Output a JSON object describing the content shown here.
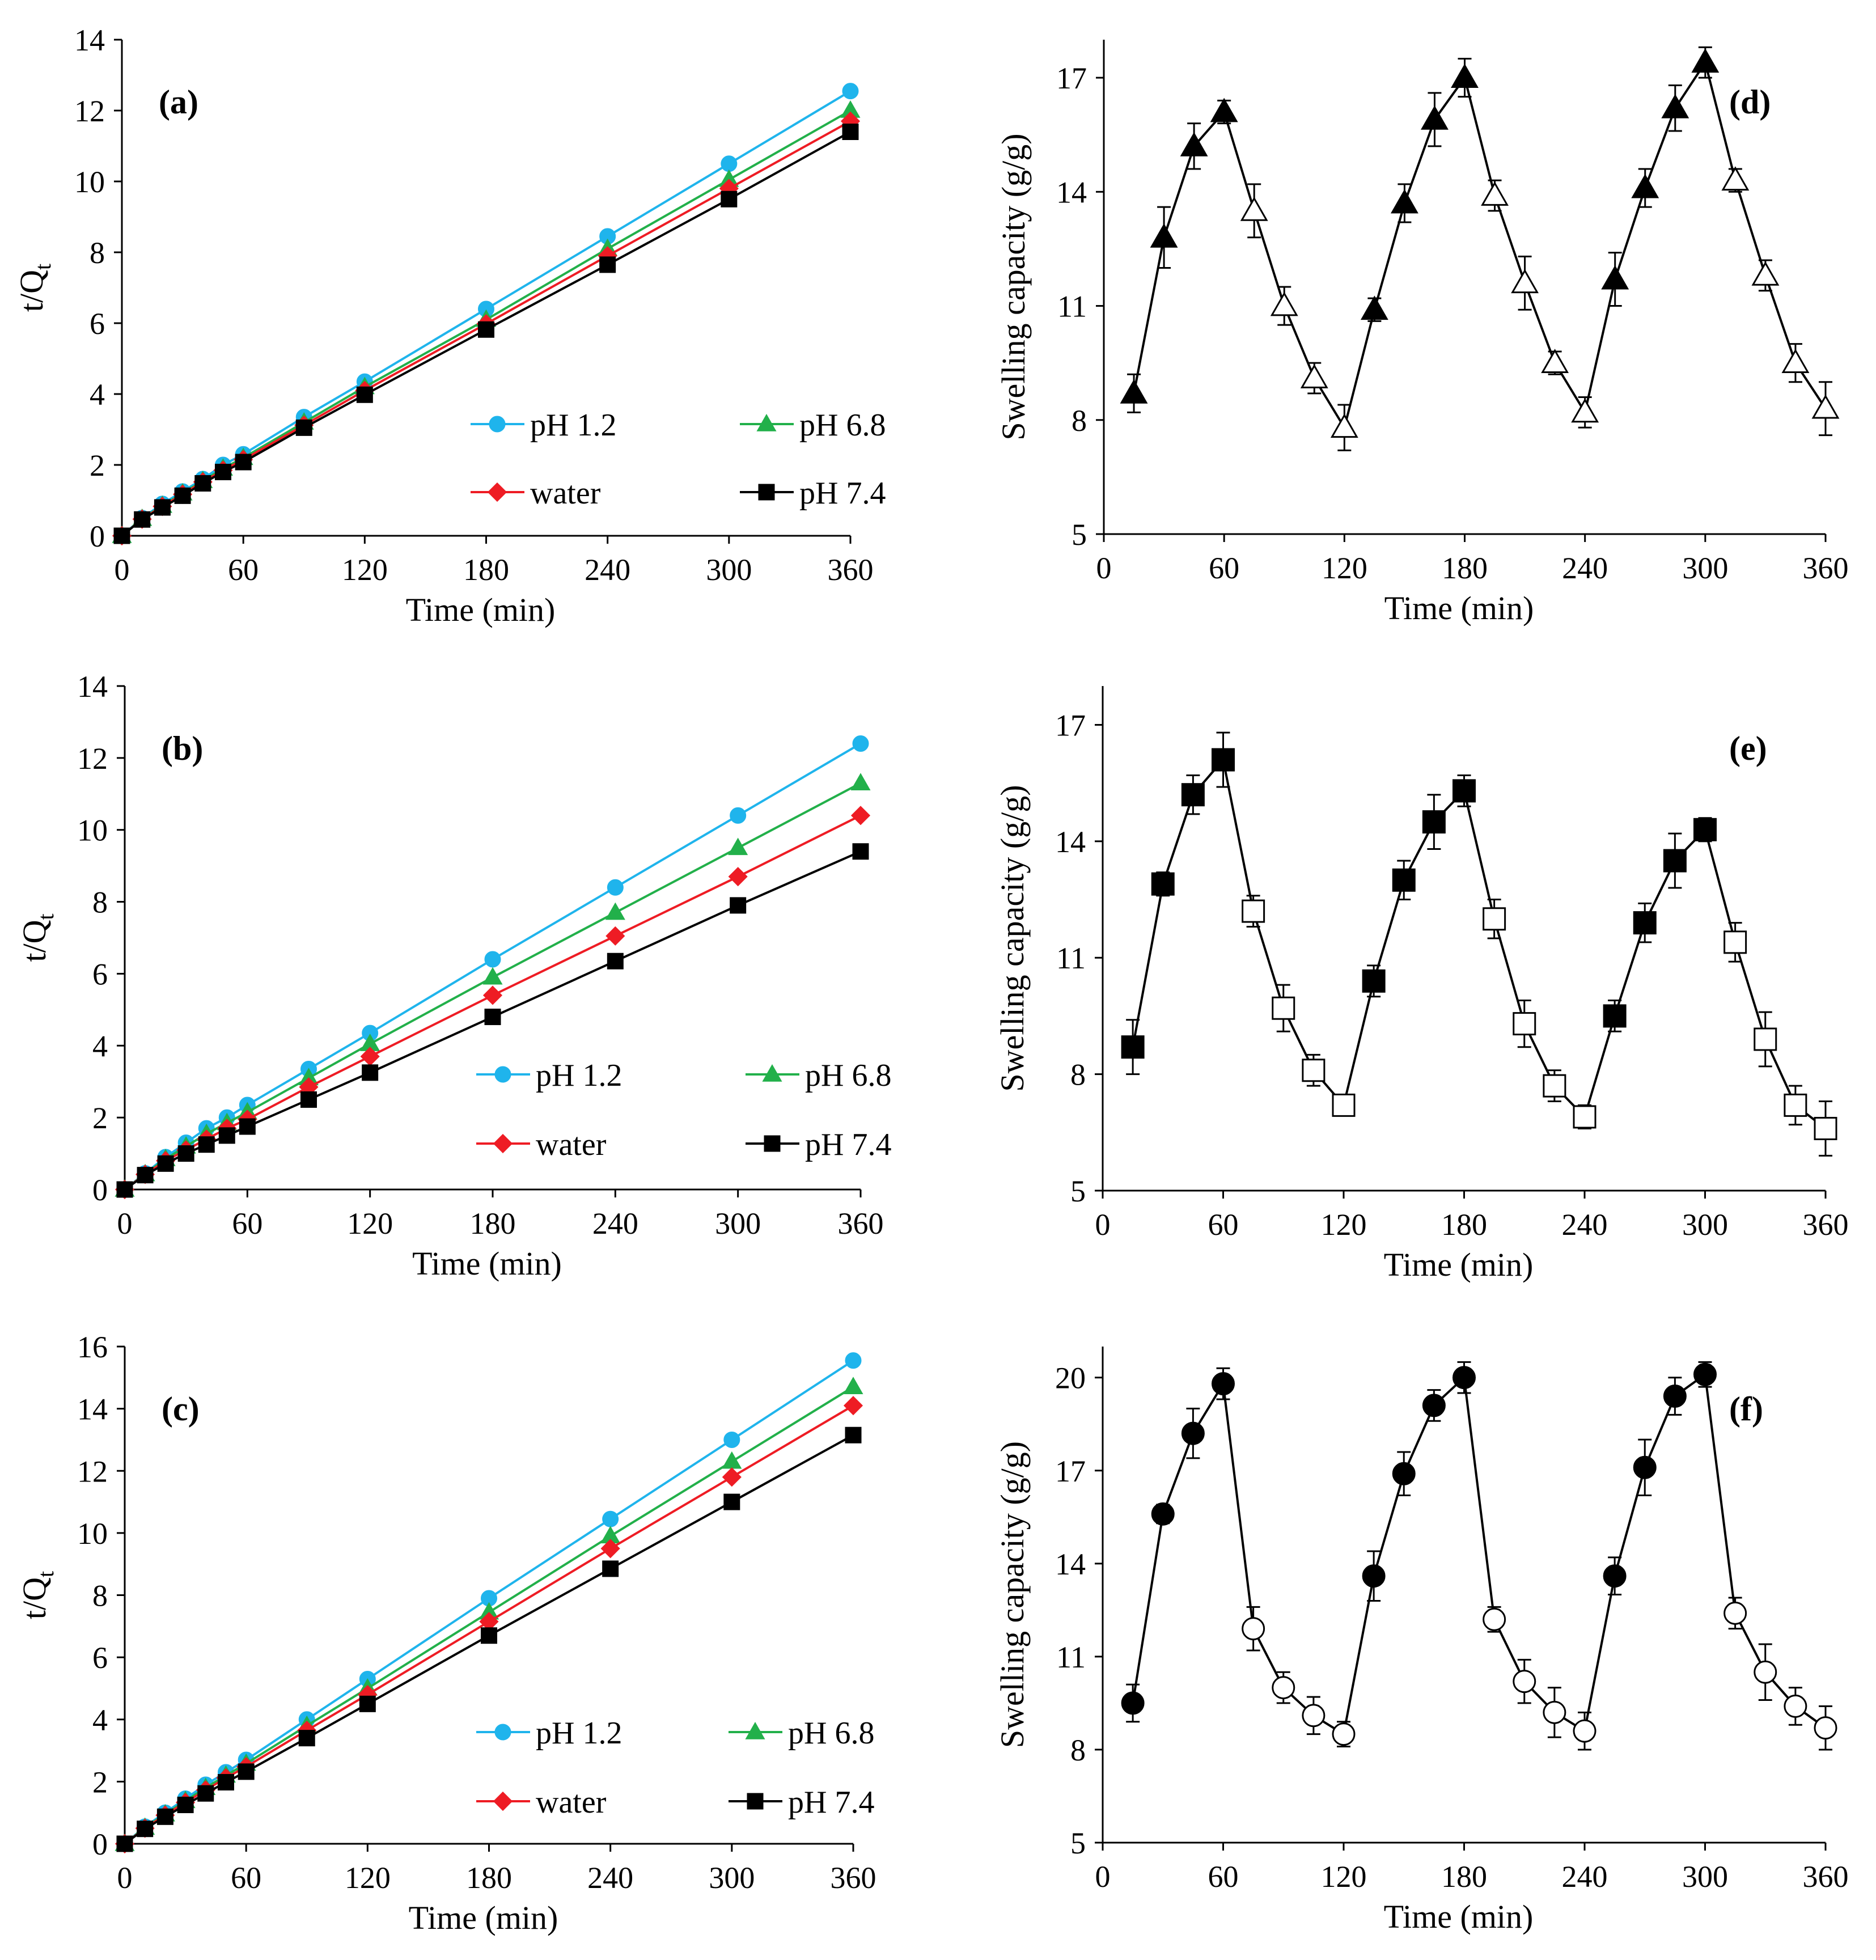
{
  "chart_data": [
    {
      "id": "a",
      "type": "line",
      "panel_label": "(a)",
      "title": "",
      "xlabel": "Time (min)",
      "ylabel": "t/Q",
      "ylabel_sub": "t",
      "xlim": [
        0,
        360
      ],
      "ylim": [
        0,
        14
      ],
      "xticks": [
        "0",
        "60",
        "120",
        "180",
        "240",
        "300",
        "360"
      ],
      "yticks": [
        "0",
        "2",
        "4",
        "6",
        "8",
        "10",
        "12",
        "14"
      ],
      "legend_position": "bottom-right",
      "x": [
        0,
        10,
        20,
        30,
        40,
        50,
        60,
        90,
        120,
        180,
        240,
        300,
        360
      ],
      "series": [
        {
          "name": "pH 1.2",
          "color": "#1fb4ec",
          "marker": "circle",
          "values": [
            0,
            0.5,
            0.9,
            1.25,
            1.6,
            2.0,
            2.3,
            3.35,
            4.35,
            6.4,
            8.45,
            10.5,
            12.55
          ]
        },
        {
          "name": "pH 6.8",
          "color": "#22b04a",
          "marker": "triangle",
          "values": [
            0,
            0.48,
            0.85,
            1.2,
            1.55,
            1.9,
            2.2,
            3.2,
            4.2,
            6.1,
            8.1,
            10.05,
            12.0
          ]
        },
        {
          "name": "water",
          "color": "#ee1c24",
          "marker": "diamond",
          "values": [
            0,
            0.47,
            0.83,
            1.17,
            1.52,
            1.85,
            2.15,
            3.12,
            4.1,
            5.98,
            7.9,
            9.8,
            11.7
          ]
        },
        {
          "name": "pH 7.4",
          "color": "#000000",
          "marker": "square",
          "values": [
            0,
            0.46,
            0.8,
            1.13,
            1.48,
            1.8,
            2.08,
            3.05,
            3.98,
            5.82,
            7.65,
            9.5,
            11.4
          ]
        }
      ]
    },
    {
      "id": "b",
      "type": "line",
      "panel_label": "(b)",
      "title": "",
      "xlabel": "Time (min)",
      "ylabel": "t/Q",
      "ylabel_sub": "t",
      "xlim": [
        0,
        360
      ],
      "ylim": [
        0,
        14
      ],
      "xticks": [
        "0",
        "60",
        "120",
        "180",
        "240",
        "300",
        "360"
      ],
      "yticks": [
        "0",
        "2",
        "4",
        "6",
        "8",
        "10",
        "12",
        "14"
      ],
      "legend_position": "bottom-right",
      "x": [
        0,
        10,
        20,
        30,
        40,
        50,
        60,
        90,
        120,
        180,
        240,
        300,
        360
      ],
      "series": [
        {
          "name": "pH 1.2",
          "color": "#1fb4ec",
          "marker": "circle",
          "values": [
            0,
            0.45,
            0.9,
            1.3,
            1.7,
            2.0,
            2.35,
            3.35,
            4.35,
            6.4,
            8.4,
            10.4,
            12.4
          ]
        },
        {
          "name": "pH 6.8",
          "color": "#22b04a",
          "marker": "triangle",
          "values": [
            0,
            0.43,
            0.85,
            1.2,
            1.55,
            1.85,
            2.15,
            3.1,
            4.05,
            5.9,
            7.7,
            9.5,
            11.3
          ]
        },
        {
          "name": "water",
          "color": "#ee1c24",
          "marker": "diamond",
          "values": [
            0,
            0.42,
            0.8,
            1.1,
            1.4,
            1.7,
            1.95,
            2.85,
            3.7,
            5.4,
            7.05,
            8.7,
            10.4
          ]
        },
        {
          "name": "pH 7.4",
          "color": "#000000",
          "marker": "square",
          "values": [
            0,
            0.4,
            0.72,
            1.0,
            1.25,
            1.5,
            1.75,
            2.5,
            3.25,
            4.8,
            6.35,
            7.9,
            9.4
          ]
        }
      ]
    },
    {
      "id": "c",
      "type": "line",
      "panel_label": "(c)",
      "title": "",
      "xlabel": "Time (min)",
      "ylabel": "t/Q",
      "ylabel_sub": "t",
      "xlim": [
        0,
        360
      ],
      "ylim": [
        0,
        16
      ],
      "xticks": [
        "0",
        "60",
        "120",
        "180",
        "240",
        "300",
        "360"
      ],
      "yticks": [
        "0",
        "2",
        "4",
        "6",
        "8",
        "10",
        "12",
        "14",
        "16"
      ],
      "legend_position": "bottom-right",
      "x": [
        0,
        10,
        20,
        30,
        40,
        50,
        60,
        90,
        120,
        180,
        240,
        300,
        360
      ],
      "series": [
        {
          "name": "pH 1.2",
          "color": "#1fb4ec",
          "marker": "circle",
          "values": [
            0,
            0.55,
            1.0,
            1.45,
            1.9,
            2.3,
            2.7,
            4.0,
            5.3,
            7.9,
            10.45,
            13.0,
            15.55
          ]
        },
        {
          "name": "pH 6.8",
          "color": "#22b04a",
          "marker": "triangle",
          "values": [
            0,
            0.52,
            0.95,
            1.38,
            1.8,
            2.2,
            2.58,
            3.8,
            5.0,
            7.45,
            9.9,
            12.3,
            14.7
          ]
        },
        {
          "name": "water",
          "color": "#ee1c24",
          "marker": "diamond",
          "values": [
            0,
            0.5,
            0.92,
            1.33,
            1.73,
            2.12,
            2.48,
            3.65,
            4.8,
            7.15,
            9.5,
            11.8,
            14.1
          ]
        },
        {
          "name": "pH 7.4",
          "color": "#000000",
          "marker": "square",
          "values": [
            0,
            0.48,
            0.87,
            1.25,
            1.62,
            1.98,
            2.32,
            3.4,
            4.5,
            6.7,
            8.85,
            11.0,
            13.15
          ]
        }
      ]
    },
    {
      "id": "d",
      "type": "line",
      "panel_label": "(d)",
      "title": "",
      "xlabel": "Time (min)",
      "ylabel": "Swelling capacity (g/g)",
      "xlim": [
        0,
        360
      ],
      "ylim": [
        5,
        18
      ],
      "xticks": [
        "0",
        "60",
        "120",
        "180",
        "240",
        "300",
        "360"
      ],
      "yticks": [
        "5",
        "8",
        "11",
        "14",
        "17"
      ],
      "marker": "triangle",
      "x": [
        15,
        30,
        45,
        60,
        75,
        90,
        105,
        120,
        135,
        150,
        165,
        180,
        195,
        210,
        225,
        240,
        255,
        270,
        285,
        300,
        315,
        330,
        345,
        360
      ],
      "values": [
        8.7,
        12.8,
        15.2,
        16.1,
        13.5,
        11.0,
        9.1,
        7.8,
        10.9,
        13.7,
        15.9,
        17.0,
        13.9,
        11.6,
        9.5,
        8.2,
        11.7,
        14.1,
        16.2,
        17.4,
        14.3,
        11.8,
        9.5,
        8.3
      ],
      "errors": [
        0.5,
        0.8,
        0.6,
        0.3,
        0.7,
        0.5,
        0.4,
        0.6,
        0.3,
        0.5,
        0.7,
        0.5,
        0.4,
        0.7,
        0.3,
        0.4,
        0.7,
        0.5,
        0.6,
        0.4,
        0.3,
        0.4,
        0.5,
        0.7
      ],
      "filled": [
        true,
        true,
        true,
        true,
        false,
        false,
        false,
        false,
        true,
        true,
        true,
        true,
        false,
        false,
        false,
        false,
        true,
        true,
        true,
        true,
        false,
        false,
        false,
        false
      ]
    },
    {
      "id": "e",
      "type": "line",
      "panel_label": "(e)",
      "title": "",
      "xlabel": "Time (min)",
      "ylabel": "Swelling capacity (g/g)",
      "xlim": [
        0,
        360
      ],
      "ylim": [
        5,
        18
      ],
      "xticks": [
        "0",
        "60",
        "120",
        "180",
        "240",
        "300",
        "360"
      ],
      "yticks": [
        "5",
        "8",
        "11",
        "14",
        "17"
      ],
      "marker": "square",
      "x": [
        15,
        30,
        45,
        60,
        75,
        90,
        105,
        120,
        135,
        150,
        165,
        180,
        195,
        210,
        225,
        240,
        255,
        270,
        285,
        300,
        315,
        330,
        345,
        360
      ],
      "values": [
        8.7,
        12.9,
        15.2,
        16.1,
        12.2,
        9.7,
        8.1,
        7.2,
        10.4,
        13.0,
        14.5,
        15.3,
        12.0,
        9.3,
        7.7,
        6.9,
        9.5,
        11.9,
        13.5,
        14.3,
        11.4,
        8.9,
        7.2,
        6.6
      ],
      "errors": [
        0.7,
        0.3,
        0.5,
        0.7,
        0.4,
        0.6,
        0.4,
        0.2,
        0.4,
        0.5,
        0.7,
        0.4,
        0.5,
        0.6,
        0.4,
        0.3,
        0.4,
        0.5,
        0.7,
        0.3,
        0.5,
        0.7,
        0.5,
        0.7
      ],
      "filled": [
        true,
        true,
        true,
        true,
        false,
        false,
        false,
        false,
        true,
        true,
        true,
        true,
        false,
        false,
        false,
        false,
        true,
        true,
        true,
        true,
        false,
        false,
        false,
        false
      ]
    },
    {
      "id": "f",
      "type": "line",
      "panel_label": "(f)",
      "title": "",
      "xlabel": "Time (min)",
      "ylabel": "Swelling capacity (g/g)",
      "xlim": [
        0,
        360
      ],
      "ylim": [
        5,
        21
      ],
      "xticks": [
        "0",
        "60",
        "120",
        "180",
        "240",
        "300",
        "360"
      ],
      "yticks": [
        "5",
        "8",
        "11",
        "14",
        "17",
        "20"
      ],
      "marker": "circle",
      "x": [
        15,
        30,
        45,
        60,
        75,
        90,
        105,
        120,
        135,
        150,
        165,
        180,
        195,
        210,
        225,
        240,
        255,
        270,
        285,
        300,
        315,
        330,
        345,
        360
      ],
      "values": [
        9.5,
        15.6,
        18.2,
        19.8,
        11.9,
        10.0,
        9.1,
        8.5,
        13.6,
        16.9,
        19.1,
        20.0,
        12.2,
        10.2,
        9.2,
        8.6,
        13.6,
        17.1,
        19.4,
        20.1,
        12.4,
        10.5,
        9.4,
        8.7
      ],
      "errors": [
        0.6,
        0.3,
        0.8,
        0.5,
        0.7,
        0.5,
        0.6,
        0.4,
        0.8,
        0.7,
        0.5,
        0.5,
        0.4,
        0.7,
        0.8,
        0.6,
        0.6,
        0.9,
        0.6,
        0.4,
        0.5,
        0.9,
        0.6,
        0.7
      ],
      "filled": [
        true,
        true,
        true,
        true,
        false,
        false,
        false,
        false,
        true,
        true,
        true,
        true,
        false,
        false,
        false,
        false,
        true,
        true,
        true,
        true,
        false,
        false,
        false,
        false
      ]
    }
  ]
}
